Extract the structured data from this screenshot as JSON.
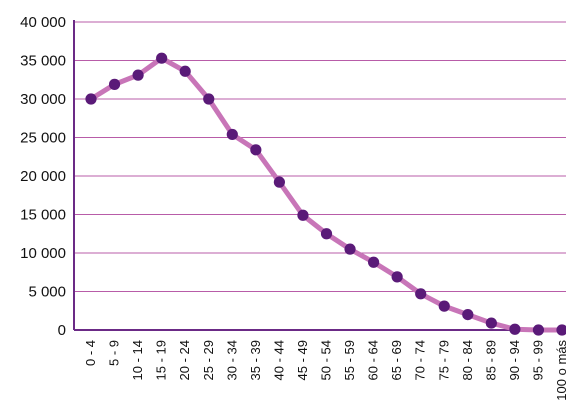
{
  "chart_data": {
    "type": "line",
    "title": "",
    "xlabel": "",
    "ylabel": "",
    "categories": [
      "0 - 4",
      "5 - 9",
      "10 - 14",
      "15 - 19",
      "20 - 24",
      "25 - 29",
      "30 - 34",
      "35 - 39",
      "40 - 44",
      "45 - 49",
      "50 - 54",
      "55 - 59",
      "60 - 64",
      "65 - 69",
      "70 - 74",
      "75 - 79",
      "80 - 84",
      "85 - 89",
      "90 - 94",
      "95 - 99",
      "100 o más"
    ],
    "values": [
      30000,
      31900,
      33100,
      35300,
      33600,
      30000,
      25400,
      23400,
      19200,
      14900,
      12500,
      10500,
      8800,
      6900,
      4700,
      3100,
      2000,
      900,
      100,
      0,
      0
    ],
    "ylim": [
      0,
      40000
    ],
    "yticks": [
      0,
      5000,
      10000,
      15000,
      20000,
      25000,
      30000,
      35000,
      40000
    ],
    "ytick_labels": [
      "0",
      "5 000",
      "10 000",
      "15 000",
      "20 000",
      "25 000",
      "30 000",
      "35 000",
      "40 000"
    ],
    "grid": true,
    "legend": "none",
    "colors": {
      "line": "#c875b8",
      "marker": "#5a1a78",
      "grid": "#b85ca8",
      "axis": "#6b2a86",
      "text": "#111111"
    }
  }
}
